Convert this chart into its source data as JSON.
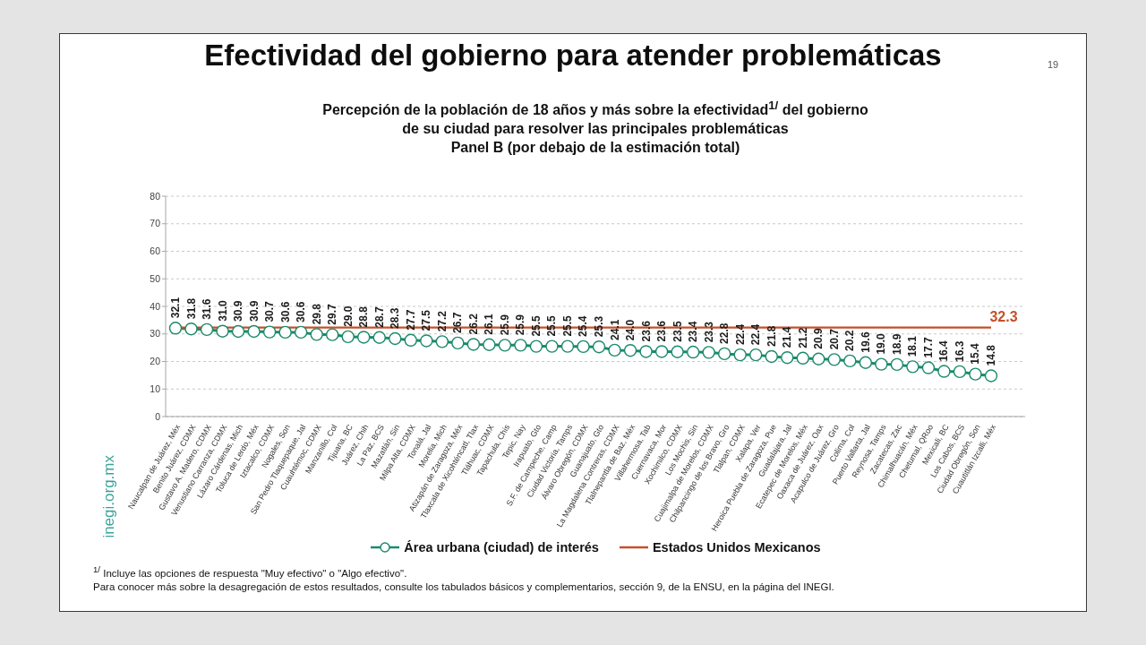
{
  "chart_data": {
    "type": "line",
    "title": "Efectividad del gobierno para atender problemáticas",
    "subtitle": "Percepción de la población de 18 años y más sobre la efectividad$^{1/}$ del gobierno\nde su ciudad para resolver las principales problemáticas\nPanel B (por debajo de la estimación total)",
    "categories": [
      "Naucalpan de Juárez, Méx",
      "Benito Juárez, CDMX",
      "Gustavo A. Madero, CDMX",
      "Venustiano Carranza, CDMX",
      "Lázaro Cárdenas, Mich",
      "Toluca de Lerdo, Méx",
      "Iztacalco, CDMX",
      "Nogales, Son",
      "San Pedro Tlaquepaque, Jal",
      "Cuauhtémoc, CDMX",
      "Manzanillo, Col",
      "Tijuana, BC",
      "Juárez, Chih",
      "La Paz, BCS",
      "Mazatlán, Sin",
      "Milpa Alta, CDMX",
      "Tonalá, Jal",
      "Morelia, Mich",
      "Atizapán de Zaragoza, Méx",
      "Tlaxcala de Xicohténcatl, Tlax",
      "Tláhuac, CDMX",
      "Tapachula, Chis",
      "Tepic, Nay",
      "Irapuato, Gto",
      "S.F. de Campeche, Camp",
      "Ciudad Victoria, Tamps",
      "Álvaro Obregón, CDMX",
      "Guanajuato, Gto",
      "La Magdalena Contreras, CDMX",
      "Tlalnepantla de Baz, Méx",
      "Villahermosa, Tab",
      "Cuernavaca, Mor",
      "Xochimilco, CDMX",
      "Los Mochis, Sin",
      "Cuajimalpa de Morelos, CDMX",
      "Chilpancingo de los Bravo, Gro",
      "Tlalpan, CDMX",
      "Xalapa, Ver",
      "Heroica Puebla de Zaragoza, Pue",
      "Guadalajara, Jal",
      "Ecatepec de Morelos, Méx",
      "Oaxaca de Juárez, Oax",
      "Acapulco de Juárez, Gro",
      "Colima, Col",
      "Puerto Vallarta, Jal",
      "Reynosa, Tamps",
      "Zacatecas, Zac",
      "Chimalhuacán, Méx",
      "Chetumal, QRoo",
      "Mexicali, BC",
      "Los Cabos, BCS",
      "Ciudad Obregón, Son",
      "Cuautitlán Izcalli, Méx"
    ],
    "series": [
      {
        "name": "Área urbana (ciudad) de interés",
        "color": "#1b8a6b",
        "values": [
          32.1,
          31.8,
          31.6,
          31.0,
          30.9,
          30.9,
          30.7,
          30.6,
          30.6,
          29.8,
          29.7,
          29.0,
          28.8,
          28.7,
          28.3,
          27.7,
          27.5,
          27.2,
          26.7,
          26.2,
          26.1,
          25.9,
          25.9,
          25.5,
          25.5,
          25.5,
          25.4,
          25.3,
          24.1,
          24.0,
          23.6,
          23.6,
          23.5,
          23.4,
          23.3,
          22.8,
          22.4,
          22.4,
          21.8,
          21.4,
          21.2,
          20.9,
          20.7,
          20.2,
          19.6,
          19.0,
          18.9,
          18.1,
          17.7,
          16.4,
          16.3,
          15.4,
          14.8
        ],
        "value_labels": [
          "32.1",
          "31.8",
          "31.6",
          "31.0",
          "30.9",
          "30.9",
          "30.7",
          "30.6",
          "30.6",
          "29.8",
          "29.7",
          "29.0",
          "28.8",
          "28.7",
          "28.3",
          "27.7",
          "27.5",
          "27.2",
          "26.7",
          "26.2",
          "26.1",
          "25.9",
          "25.9",
          "25.5",
          "25.5",
          "25.5",
          "25.4",
          "25.3",
          "24.1",
          "24.0",
          "23.6",
          "23.6",
          "23.5",
          "23.4",
          "23.3",
          "22.8",
          "22.4",
          "22.4",
          "21.8",
          "21.4",
          "21.2",
          "20.9",
          "20.7",
          "20.2",
          "19.6",
          "19.0",
          "18.9",
          "18.1",
          "17.7",
          "16.4",
          "16.3",
          "15.4",
          "14.8"
        ]
      },
      {
        "name": "Estados Unidos Mexicanos",
        "color": "#c5502a",
        "marker": "none",
        "values": [
          32.3,
          32.3,
          32.3,
          32.3,
          32.3,
          32.3,
          32.3,
          32.3,
          32.3,
          32.3,
          32.3,
          32.3,
          32.3,
          32.3,
          32.3,
          32.3,
          32.3,
          32.3,
          32.3,
          32.3,
          32.3,
          32.3,
          32.3,
          32.3,
          32.3,
          32.3,
          32.3,
          32.3,
          32.3,
          32.3,
          32.3,
          32.3,
          32.3,
          32.3,
          32.3,
          32.3,
          32.3,
          32.3,
          32.3,
          32.3,
          32.3,
          32.3,
          32.3,
          32.3,
          32.3,
          32.3,
          32.3,
          32.3,
          32.3,
          32.3,
          32.3,
          32.3,
          32.3
        ],
        "value_labels": [
          null,
          null,
          null,
          null,
          null,
          null,
          null,
          null,
          null,
          null,
          null,
          null,
          null,
          null,
          null,
          null,
          null,
          null,
          null,
          null,
          null,
          null,
          null,
          null,
          null,
          null,
          null,
          null,
          null,
          null,
          null,
          null,
          null,
          null,
          null,
          null,
          null,
          null,
          null,
          null,
          null,
          null,
          null,
          null,
          null,
          null,
          null,
          null,
          null,
          null,
          null,
          null,
          "32.3"
        ]
      }
    ],
    "ylim": [
      0,
      80
    ],
    "yticks": [
      0,
      10,
      20,
      30,
      40,
      50,
      60,
      70,
      80
    ],
    "grid": "y",
    "legend": "bottom",
    "marker": "circle",
    "annotations": [
      "$^{1/}$ Incluye las opciones de respuesta \"Muy efectivo\" o \"Algo efectivo\".",
      "Para conocer más sobre la desagregación de estos resultados, consulte los tabulados básicos y complementarios, sección 9, de la ENSU, en la página del INEGI.",
      "inegi.org.mx",
      "19"
    ]
  }
}
